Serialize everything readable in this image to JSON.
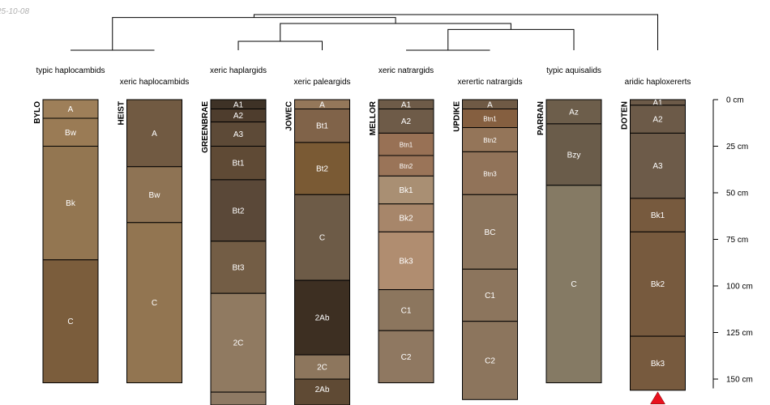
{
  "date_stamp": "25-10-08",
  "colors": {
    "line": "#000000",
    "label_text": "#ffffff",
    "marker": "#e8111e"
  },
  "depth_axis": {
    "unit": "cm",
    "max_depth": 155,
    "ticks": [
      {
        "value": 0,
        "label": "0 cm"
      },
      {
        "value": 25,
        "label": "25 cm"
      },
      {
        "value": 50,
        "label": "50 cm"
      },
      {
        "value": 75,
        "label": "75 cm"
      },
      {
        "value": 100,
        "label": "100 cm"
      },
      {
        "value": 125,
        "label": "125 cm"
      },
      {
        "value": 150,
        "label": "150 cm"
      }
    ]
  },
  "profiles": [
    {
      "id": "BYLO",
      "taxon": "typic haplocambids",
      "horizons": [
        {
          "name": "A",
          "top": 0,
          "bottom": 10,
          "color": "#9e7f59"
        },
        {
          "name": "Bw",
          "top": 10,
          "bottom": 25,
          "color": "#9a7b55"
        },
        {
          "name": "Bk",
          "top": 25,
          "bottom": 86,
          "color": "#937651"
        },
        {
          "name": "C",
          "top": 86,
          "bottom": 152,
          "color": "#7b5d3c"
        }
      ]
    },
    {
      "id": "HEIST",
      "taxon": "xeric haplocambids",
      "horizons": [
        {
          "name": "A",
          "top": 0,
          "bottom": 36,
          "color": "#715a42"
        },
        {
          "name": "Bw",
          "top": 36,
          "bottom": 66,
          "color": "#8e7354"
        },
        {
          "name": "C",
          "top": 66,
          "bottom": 152,
          "color": "#927551"
        }
      ]
    },
    {
      "id": "GREENBRAE",
      "taxon": "xeric haplargids",
      "horizons": [
        {
          "name": "A1",
          "top": 0,
          "bottom": 5,
          "color": "#3e3226"
        },
        {
          "name": "A2",
          "top": 5,
          "bottom": 12,
          "color": "#4e3d2d"
        },
        {
          "name": "A3",
          "top": 12,
          "bottom": 25,
          "color": "#5d4a37"
        },
        {
          "name": "Bt1",
          "top": 25,
          "bottom": 43,
          "color": "#5f4a35"
        },
        {
          "name": "Bt2",
          "top": 43,
          "bottom": 76,
          "color": "#5a4838"
        },
        {
          "name": "Bt3",
          "top": 76,
          "bottom": 104,
          "color": "#735d45"
        },
        {
          "name": "2C",
          "top": 104,
          "bottom": 157,
          "color": "#907a61"
        },
        {
          "name": "",
          "top": 157,
          "bottom": 165,
          "color": "#8e7a64"
        }
      ]
    },
    {
      "id": "JOWEC",
      "taxon": "xeric paleargids",
      "horizons": [
        {
          "name": "A",
          "top": 0,
          "bottom": 5,
          "color": "#94775a"
        },
        {
          "name": "Bt1",
          "top": 5,
          "bottom": 23,
          "color": "#806349"
        },
        {
          "name": "Bt2",
          "top": 23,
          "bottom": 51,
          "color": "#7a5a34"
        },
        {
          "name": "C",
          "top": 51,
          "bottom": 97,
          "color": "#6d5b47"
        },
        {
          "name": "2Ab",
          "top": 97,
          "bottom": 137,
          "color": "#3d2f22"
        },
        {
          "name": "2C",
          "top": 137,
          "bottom": 150,
          "color": "#8d765d"
        },
        {
          "name": "2Ab",
          "top": 150,
          "bottom": 165,
          "color": "#5f4a34"
        }
      ]
    },
    {
      "id": "MELLOR",
      "taxon": "xeric natrargids",
      "horizons": [
        {
          "name": "A1",
          "top": 0,
          "bottom": 5,
          "color": "#6e5b48"
        },
        {
          "name": "A2",
          "top": 5,
          "bottom": 18,
          "color": "#6e5b48"
        },
        {
          "name": "Btn1",
          "top": 18,
          "bottom": 30,
          "color": "#987155"
        },
        {
          "name": "Btn2",
          "top": 30,
          "bottom": 41,
          "color": "#9a7458"
        },
        {
          "name": "Bk1",
          "top": 41,
          "bottom": 56,
          "color": "#a98f73"
        },
        {
          "name": "Bk2",
          "top": 56,
          "bottom": 71,
          "color": "#a7866a"
        },
        {
          "name": "Bk3",
          "top": 71,
          "bottom": 102,
          "color": "#b08d70"
        },
        {
          "name": "C1",
          "top": 102,
          "bottom": 124,
          "color": "#8c765e"
        },
        {
          "name": "C2",
          "top": 124,
          "bottom": 152,
          "color": "#8f7861"
        }
      ]
    },
    {
      "id": "UPDIKE",
      "taxon": "xerertic natrargids",
      "horizons": [
        {
          "name": "A",
          "top": 0,
          "bottom": 5,
          "color": "#6f5a45"
        },
        {
          "name": "Btn1",
          "top": 5,
          "bottom": 15,
          "color": "#855f40"
        },
        {
          "name": "Btn2",
          "top": 15,
          "bottom": 28,
          "color": "#947559"
        },
        {
          "name": "Btn3",
          "top": 28,
          "bottom": 51,
          "color": "#917359"
        },
        {
          "name": "BC",
          "top": 51,
          "bottom": 91,
          "color": "#8c755d"
        },
        {
          "name": "C1",
          "top": 91,
          "bottom": 119,
          "color": "#8c755d"
        },
        {
          "name": "C2",
          "top": 119,
          "bottom": 161,
          "color": "#8c755d"
        }
      ]
    },
    {
      "id": "PARRAN",
      "taxon": "typic aquisalids",
      "horizons": [
        {
          "name": "Az",
          "top": 0,
          "bottom": 13,
          "color": "#6d5e4b"
        },
        {
          "name": "Bzy",
          "top": 13,
          "bottom": 46,
          "color": "#6a5c4a"
        },
        {
          "name": "C",
          "top": 46,
          "bottom": 152,
          "color": "#857a64"
        }
      ]
    },
    {
      "id": "DOTEN",
      "taxon": "aridic haploxererts",
      "horizons": [
        {
          "name": "A1",
          "top": 0,
          "bottom": 3,
          "color": "#6c5a48"
        },
        {
          "name": "A2",
          "top": 3,
          "bottom": 18,
          "color": "#6c5a48"
        },
        {
          "name": "A3",
          "top": 18,
          "bottom": 53,
          "color": "#6d5b49"
        },
        {
          "name": "Bk1",
          "top": 53,
          "bottom": 71,
          "color": "#775a3e"
        },
        {
          "name": "Bk2",
          "top": 71,
          "bottom": 127,
          "color": "#775a3e"
        },
        {
          "name": "Bk3",
          "top": 127,
          "bottom": 156,
          "color": "#775a3e"
        }
      ],
      "truncated": true
    }
  ],
  "dendrogram": {
    "merges": [
      {
        "a": "p1",
        "b": "p2",
        "height": 0.6
      },
      {
        "a": "p5",
        "b": "p6",
        "height": 0.6
      },
      {
        "a": "p3",
        "b": "p4",
        "height": 0.45
      },
      {
        "a": "m2",
        "b": "p7",
        "height": 0.25
      },
      {
        "a": "m3",
        "b": "m4",
        "height": 0.15
      },
      {
        "a": "m1",
        "b": "m5",
        "height": 0.05
      },
      {
        "a": "m6",
        "b": "p8",
        "height": 0.0
      }
    ]
  }
}
